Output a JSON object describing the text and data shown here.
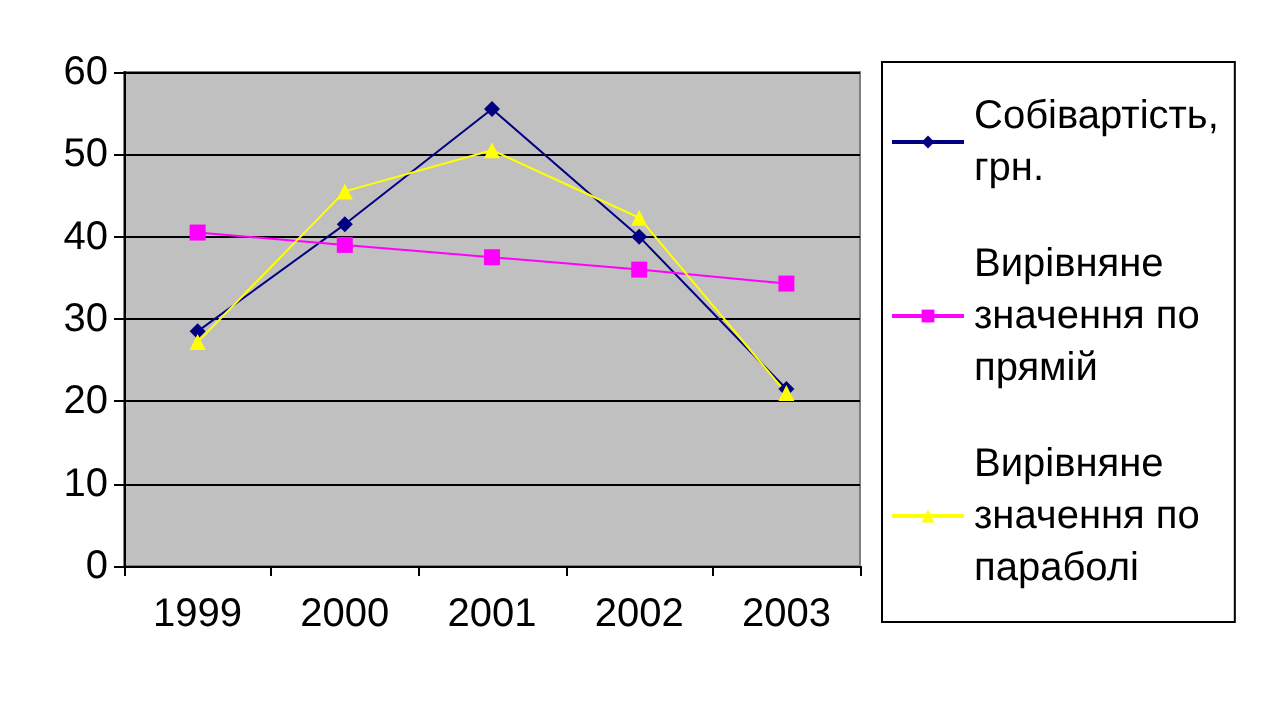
{
  "chart_data": {
    "type": "line",
    "categories": [
      "1999",
      "2000",
      "2001",
      "2002",
      "2003"
    ],
    "series": [
      {
        "name": "Собівартість, грн.",
        "color": "#000080",
        "marker": "diamond",
        "values": [
          28.5,
          41.5,
          55.5,
          40,
          21.5
        ]
      },
      {
        "name": "Вирівняне значення по прямій",
        "color": "#ff00ff",
        "marker": "square",
        "values": [
          40.5,
          39,
          37.5,
          36,
          34.3
        ]
      },
      {
        "name": "Вирівняне значення по параболі",
        "color": "#ffff00",
        "marker": "triangle",
        "values": [
          27.2,
          45.5,
          50.5,
          42.3,
          21
        ]
      }
    ],
    "ylim": [
      0,
      60
    ],
    "yticks": [
      0,
      10,
      20,
      30,
      40,
      50,
      60
    ],
    "grid": "y",
    "legend": "right"
  }
}
